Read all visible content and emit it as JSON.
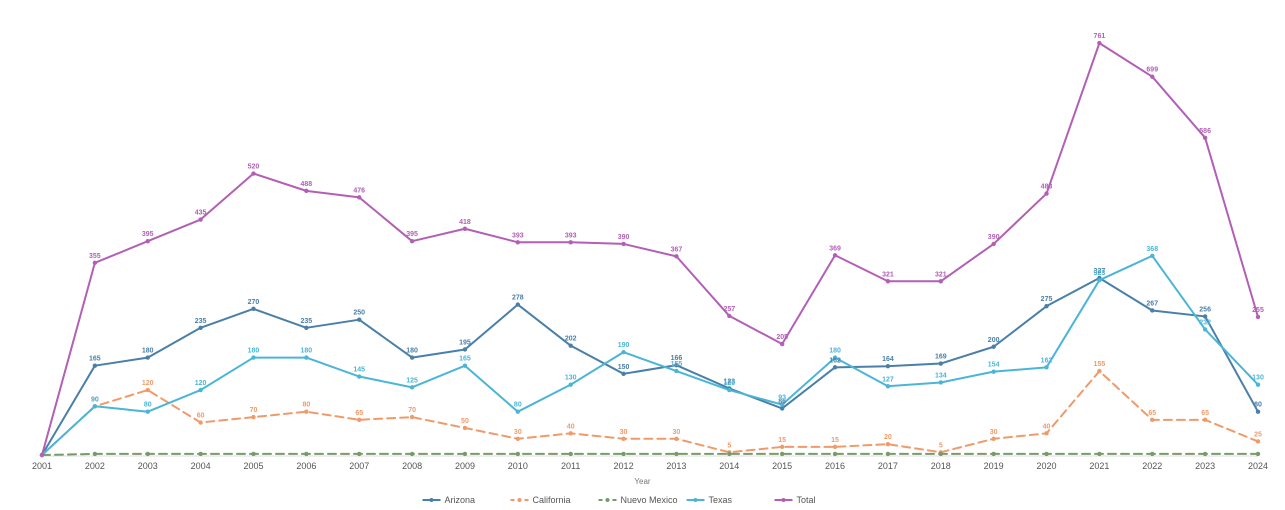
{
  "chart_data": {
    "type": "line",
    "title": "",
    "xlabel": "Year",
    "ylabel": "",
    "ylim": [
      0,
      800
    ],
    "grid": false,
    "legend_position": "bottom",
    "x": [
      "2001",
      "2002",
      "2003",
      "2004",
      "2005",
      "2006",
      "2007",
      "2008",
      "2009",
      "2010",
      "2011",
      "2012",
      "2013",
      "2014",
      "2015",
      "2016",
      "2017",
      "2018",
      "2019",
      "2020",
      "2021",
      "2022",
      "2023",
      "2024"
    ],
    "series": [
      {
        "name": "Arizona",
        "color": "#4a7fa8",
        "dash": false,
        "values": [
          0,
          165,
          180,
          235,
          270,
          235,
          250,
          180,
          195,
          278,
          202,
          150,
          166,
          123,
          86,
          162,
          164,
          169,
          200,
          275,
          327,
          267,
          256,
          80
        ]
      },
      {
        "name": "California",
        "color": "#f09a6a",
        "dash": true,
        "values": [
          0,
          90,
          120,
          60,
          70,
          80,
          65,
          70,
          50,
          30,
          40,
          30,
          30,
          5,
          15,
          15,
          20,
          5,
          30,
          40,
          155,
          65,
          65,
          25
        ]
      },
      {
        "name": "Nuevo Mexico",
        "color": "#7a9a6a",
        "dash": true,
        "values": [
          0,
          2,
          2,
          2,
          2,
          2,
          2,
          2,
          2,
          2,
          2,
          2,
          2,
          2,
          2,
          2,
          2,
          2,
          2,
          2,
          2,
          2,
          2,
          2
        ]
      },
      {
        "name": "Texas",
        "color": "#4bb5d8",
        "dash": false,
        "values": [
          0,
          90,
          80,
          120,
          180,
          180,
          145,
          125,
          165,
          80,
          130,
          190,
          155,
          120,
          93,
          180,
          127,
          134,
          154,
          162,
          323,
          368,
          232,
          130
        ]
      },
      {
        "name": "Total",
        "color": "#b25fb5",
        "dash": false,
        "values": [
          0,
          355,
          395,
          435,
          520,
          488,
          476,
          395,
          418,
          393,
          393,
          390,
          367,
          257,
          205,
          369,
          321,
          321,
          390,
          483,
          761,
          699,
          586,
          255
        ]
      }
    ]
  }
}
